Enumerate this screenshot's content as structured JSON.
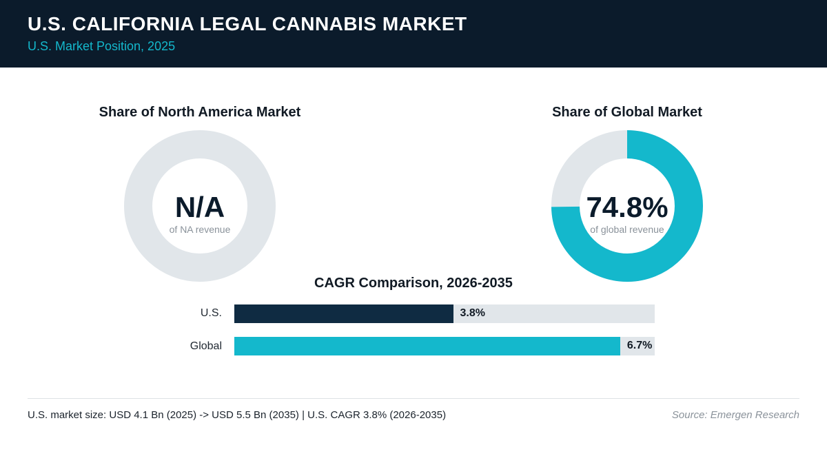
{
  "header": {
    "title": "U.S. CALIFORNIA LEGAL CANNABIS MARKET",
    "subtitle": "U.S. Market Position, 2025"
  },
  "colors": {
    "header_bg": "#0b1b2b",
    "accent_teal": "#14b8cc",
    "us_navy": "#0f2b42",
    "track_gray": "#e1e6ea"
  },
  "chart_data": [
    {
      "type": "pie",
      "title": "Share of North America Market",
      "value": null,
      "value_label": "N/A",
      "caption": "of NA revenue",
      "color": "#14b8cc"
    },
    {
      "type": "pie",
      "title": "Share of Global Market",
      "value": 74.8,
      "value_label": "74.8%",
      "caption": "of global revenue",
      "color": "#14b8cc"
    },
    {
      "type": "bar",
      "title": "CAGR Comparison, 2026-2035",
      "categories": [
        "U.S.",
        "Global"
      ],
      "values": [
        3.8,
        6.7
      ],
      "value_labels": [
        "3.8%",
        "6.7%"
      ],
      "colors": [
        "#0f2b42",
        "#14b8cc"
      ],
      "xlim": [
        0,
        7.3
      ],
      "orientation": "horizontal"
    }
  ],
  "footer": {
    "note": "U.S. market size: USD 4.1 Bn (2025) -> USD 5.5 Bn (2035)  |  U.S. CAGR 3.8% (2026-2035)",
    "source": "Source: Emergen Research"
  }
}
